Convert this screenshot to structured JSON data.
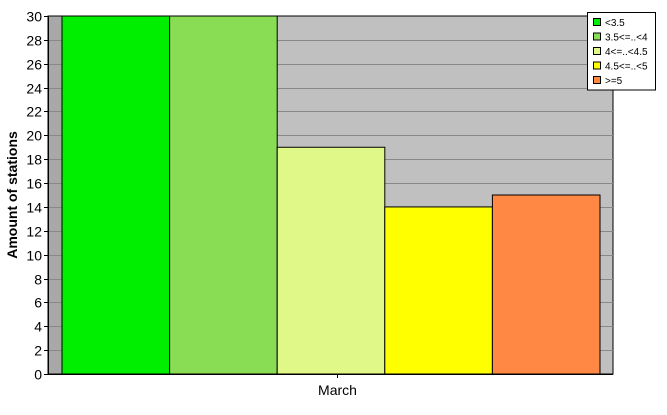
{
  "chart_data": {
    "type": "bar",
    "categories": [
      "March"
    ],
    "series": [
      {
        "name": "<3.5",
        "values": [
          30
        ],
        "color": "#00ee00"
      },
      {
        "name": "3.5<=..<4",
        "values": [
          30
        ],
        "color": "#88dd55"
      },
      {
        "name": "4<=..<4.5",
        "values": [
          19
        ],
        "color": "#e0f888"
      },
      {
        "name": "4.5<=..<5",
        "values": [
          14
        ],
        "color": "#ffff00"
      },
      {
        "name": ">=5",
        "values": [
          15
        ],
        "color": "#ff8844"
      }
    ],
    "title": "",
    "xlabel": "",
    "ylabel": "Amount of stations",
    "ylim": [
      0,
      30
    ],
    "yticks": [
      0,
      2,
      4,
      6,
      8,
      10,
      12,
      14,
      16,
      18,
      20,
      22,
      24,
      26,
      28,
      30
    ],
    "grid": true,
    "legend": "top-right",
    "plot_background": "#c0c0c0"
  }
}
